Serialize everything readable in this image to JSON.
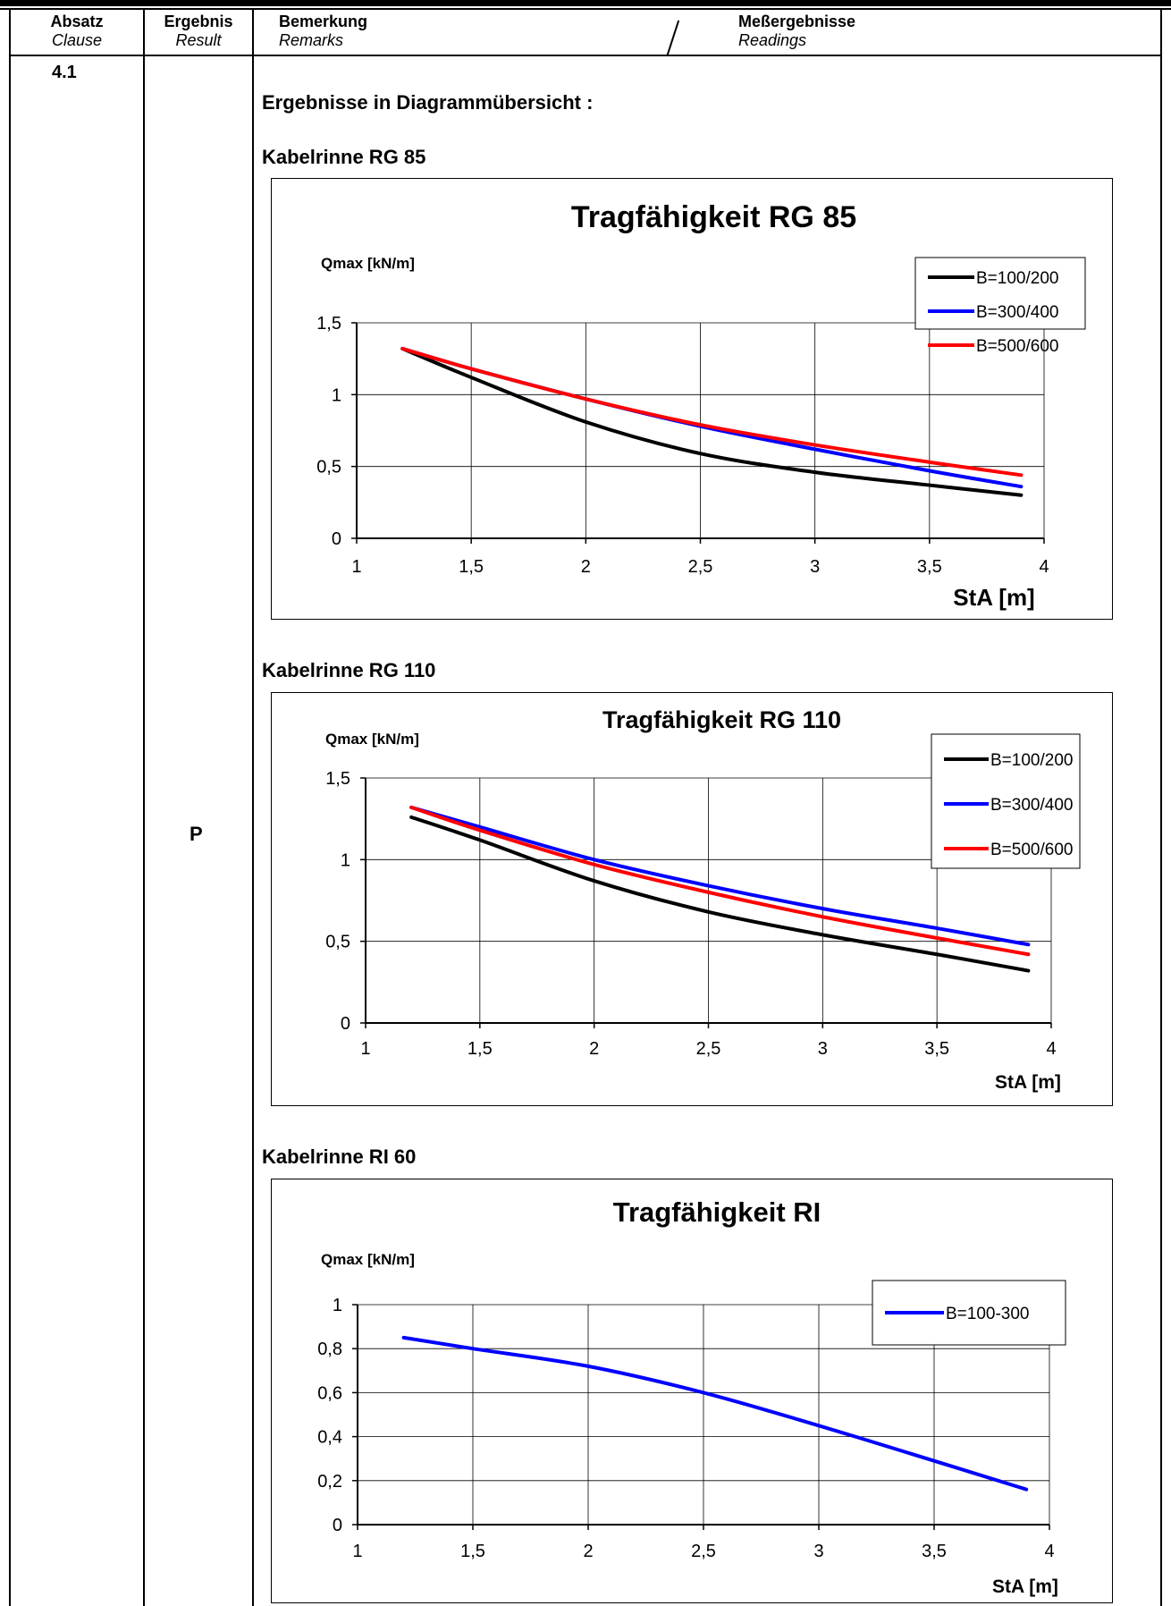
{
  "header": {
    "col1": {
      "de": "Absatz",
      "en": "Clause"
    },
    "col2": {
      "de": "Ergebnis",
      "en": "Result"
    },
    "col3": {
      "de": "Bemerkung",
      "en": "Remarks"
    },
    "col4": {
      "de": "Meßergebnisse",
      "en": "Readings"
    }
  },
  "clause": "4.1",
  "result": "P",
  "overview_title": "Ergebnisse in Diagrammübersicht :",
  "sections": [
    {
      "heading": "Kabelrinne RG 85"
    },
    {
      "heading": "Kabelrinne RG 110"
    },
    {
      "heading": "Kabelrinne RI 60"
    }
  ],
  "chart_data": [
    {
      "type": "line",
      "title": "Tragfähigkeit RG 85",
      "xlabel": "StA [m]",
      "ylabel": "Qmax [kN/m]",
      "xlim": [
        1,
        4
      ],
      "ylim": [
        0,
        1.5
      ],
      "xticks": [
        "1",
        "1,5",
        "2",
        "2,5",
        "3",
        "3,5",
        "4"
      ],
      "yticks": [
        "0",
        "0,5",
        "1",
        "1,5"
      ],
      "grid": true,
      "legend_position": "top-right",
      "series": [
        {
          "name": "B=100/200",
          "color": "#000000",
          "x": [
            1.2,
            1.5,
            2.0,
            2.5,
            3.0,
            3.5,
            3.9
          ],
          "y": [
            1.32,
            1.12,
            0.81,
            0.59,
            0.46,
            0.37,
            0.3
          ]
        },
        {
          "name": "B=300/400",
          "color": "#0000ff",
          "x": [
            1.2,
            1.5,
            2.0,
            2.5,
            3.0,
            3.5,
            3.9
          ],
          "y": [
            1.32,
            1.18,
            0.97,
            0.78,
            0.62,
            0.47,
            0.36
          ]
        },
        {
          "name": "B=500/600",
          "color": "#ff0000",
          "x": [
            1.2,
            1.5,
            2.0,
            2.5,
            3.0,
            3.5,
            3.9
          ],
          "y": [
            1.32,
            1.18,
            0.97,
            0.79,
            0.65,
            0.53,
            0.44
          ]
        }
      ]
    },
    {
      "type": "line",
      "title": "Tragfähigkeit RG 110",
      "xlabel": "StA [m]",
      "ylabel": "Qmax [kN/m]",
      "xlim": [
        1,
        4
      ],
      "ylim": [
        0,
        1.5
      ],
      "xticks": [
        "1",
        "1,5",
        "2",
        "2,5",
        "3",
        "3,5",
        "4"
      ],
      "yticks": [
        "0",
        "0,5",
        "1",
        "1,5"
      ],
      "grid": true,
      "legend_position": "top-right",
      "series": [
        {
          "name": "B=100/200",
          "color": "#000000",
          "x": [
            1.2,
            1.5,
            2.0,
            2.5,
            3.0,
            3.5,
            3.9
          ],
          "y": [
            1.26,
            1.12,
            0.87,
            0.68,
            0.54,
            0.42,
            0.32
          ]
        },
        {
          "name": "B=300/400",
          "color": "#0000ff",
          "x": [
            1.2,
            1.5,
            2.0,
            2.5,
            3.0,
            3.5,
            3.9
          ],
          "y": [
            1.32,
            1.2,
            1.0,
            0.84,
            0.7,
            0.58,
            0.48
          ]
        },
        {
          "name": "B=500/600",
          "color": "#ff0000",
          "x": [
            1.2,
            1.5,
            2.0,
            2.5,
            3.0,
            3.5,
            3.9
          ],
          "y": [
            1.32,
            1.18,
            0.97,
            0.8,
            0.65,
            0.52,
            0.42
          ]
        }
      ]
    },
    {
      "type": "line",
      "title": "Tragfähigkeit RI",
      "xlabel": "StA [m]",
      "ylabel": "Qmax [kN/m]",
      "xlim": [
        1,
        4
      ],
      "ylim": [
        0,
        1
      ],
      "xticks": [
        "1",
        "1,5",
        "2",
        "2,5",
        "3",
        "3,5",
        "4"
      ],
      "yticks": [
        "0",
        "0,2",
        "0,4",
        "0,6",
        "0,8",
        "1"
      ],
      "grid": true,
      "legend_position": "top-right",
      "series": [
        {
          "name": "B=100-300",
          "color": "#0000ff",
          "x": [
            1.2,
            1.5,
            2.0,
            2.5,
            3.0,
            3.5,
            3.9
          ],
          "y": [
            0.85,
            0.8,
            0.72,
            0.6,
            0.45,
            0.29,
            0.16
          ]
        }
      ]
    }
  ]
}
